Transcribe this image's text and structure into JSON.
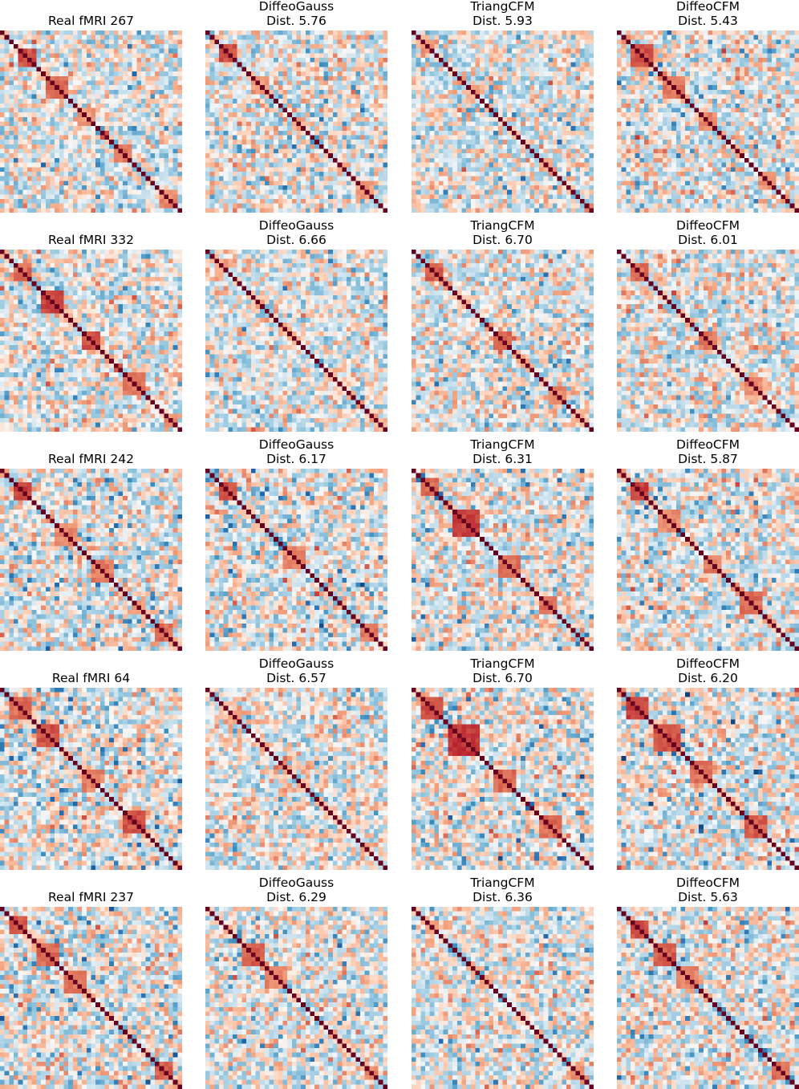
{
  "chart_data": {
    "type": "heatmap",
    "figure_note": "Grid of correlation-matrix heatmaps: 5 rows (subjects) x 4 columns (Real fMRI, DiffeoGauss, TriangCFM, DiffeoCFM). Values estimated from visual colour intensity.",
    "colormap": "diverging red-white-blue (RdBu_r), blue = negative, red = positive",
    "colors": {
      "positive": "#67001f",
      "mid": "#f7f7f7",
      "negative": "#053061"
    },
    "value_range": [
      -1,
      1
    ],
    "matrix_size": 40,
    "grid": false,
    "axes_visible": false,
    "rows": [
      {
        "panels": [
          {
            "title": "Real fMRI 267",
            "subtitle": "",
            "seed": 1,
            "blocks": [
              [
                4,
                7,
                0.55
              ],
              [
                10,
                14,
                0.45
              ],
              [
                17,
                20,
                0.3
              ],
              [
                25,
                28,
                0.4
              ],
              [
                35,
                38,
                0.35
              ]
            ],
            "neg_strength": 0.45
          },
          {
            "title": "DiffeoGauss",
            "subtitle": "Dist. 5.76",
            "seed": 2,
            "blocks": [
              [
                3,
                6,
                0.55
              ],
              [
                10,
                13,
                0.3
              ],
              [
                19,
                21,
                0.25
              ],
              [
                33,
                36,
                0.3
              ]
            ],
            "neg_strength": 0.4
          },
          {
            "title": "TriangCFM",
            "subtitle": "Dist. 5.93",
            "seed": 3,
            "blocks": [
              [
                2,
                4,
                0.35
              ],
              [
                12,
                14,
                0.25
              ],
              [
                28,
                30,
                0.25
              ]
            ],
            "neg_strength": 0.35
          },
          {
            "title": "DiffeoCFM",
            "subtitle": "Dist. 5.43",
            "seed": 4,
            "blocks": [
              [
                3,
                7,
                0.55
              ],
              [
                10,
                14,
                0.4
              ],
              [
                18,
                21,
                0.35
              ],
              [
                31,
                34,
                0.3
              ]
            ],
            "neg_strength": 0.45
          }
        ]
      },
      {
        "panels": [
          {
            "title": "Real fMRI 332",
            "subtitle": "",
            "seed": 5,
            "blocks": [
              [
                3,
                6,
                0.45
              ],
              [
                9,
                13,
                0.6
              ],
              [
                18,
                21,
                0.55
              ],
              [
                27,
                31,
                0.4
              ],
              [
                36,
                38,
                0.35
              ]
            ],
            "neg_strength": 0.35
          },
          {
            "title": "DiffeoGauss",
            "subtitle": "Dist. 6.66",
            "seed": 6,
            "blocks": [
              [
                2,
                4,
                0.25
              ],
              [
                16,
                18,
                0.2
              ],
              [
                26,
                28,
                0.2
              ]
            ],
            "neg_strength": 0.3
          },
          {
            "title": "TriangCFM",
            "subtitle": "Dist. 6.70",
            "seed": 7,
            "blocks": [
              [
                3,
                6,
                0.5
              ],
              [
                18,
                21,
                0.45
              ],
              [
                30,
                33,
                0.35
              ]
            ],
            "neg_strength": 0.35
          },
          {
            "title": "DiffeoCFM",
            "subtitle": "Dist. 6.01",
            "seed": 8,
            "blocks": [
              [
                3,
                6,
                0.45
              ],
              [
                18,
                21,
                0.4
              ],
              [
                28,
                31,
                0.35
              ]
            ],
            "neg_strength": 0.3
          }
        ]
      },
      {
        "panels": [
          {
            "title": "Real fMRI 242",
            "subtitle": "",
            "seed": 9,
            "blocks": [
              [
                3,
                6,
                0.6
              ],
              [
                12,
                16,
                0.35
              ],
              [
                20,
                24,
                0.4
              ],
              [
                34,
                37,
                0.45
              ]
            ],
            "neg_strength": 0.55
          },
          {
            "title": "DiffeoGauss",
            "subtitle": "Dist. 6.17",
            "seed": 10,
            "blocks": [
              [
                3,
                6,
                0.55
              ],
              [
                17,
                21,
                0.35
              ],
              [
                34,
                37,
                0.4
              ]
            ],
            "neg_strength": 0.55
          },
          {
            "title": "TriangCFM",
            "subtitle": "Dist. 6.31",
            "seed": 11,
            "blocks": [
              [
                2,
                5,
                0.45
              ],
              [
                9,
                14,
                0.6
              ],
              [
                19,
                23,
                0.45
              ],
              [
                28,
                31,
                0.45
              ]
            ],
            "neg_strength": 0.5
          },
          {
            "title": "DiffeoCFM",
            "subtitle": "Dist. 5.87",
            "seed": 12,
            "blocks": [
              [
                3,
                6,
                0.6
              ],
              [
                9,
                13,
                0.35
              ],
              [
                19,
                22,
                0.4
              ],
              [
                27,
                31,
                0.45
              ]
            ],
            "neg_strength": 0.45
          }
        ]
      },
      {
        "panels": [
          {
            "title": "Real fMRI 64",
            "subtitle": "",
            "seed": 13,
            "blocks": [
              [
                2,
                6,
                0.45
              ],
              [
                8,
                12,
                0.55
              ],
              [
                18,
                21,
                0.4
              ],
              [
                27,
                31,
                0.55
              ]
            ],
            "neg_strength": 0.55
          },
          {
            "title": "DiffeoGauss",
            "subtitle": "Dist. 6.57",
            "seed": 14,
            "blocks": [
              [
                5,
                7,
                0.2
              ],
              [
                20,
                22,
                0.2
              ]
            ],
            "neg_strength": 0.3
          },
          {
            "title": "TriangCFM",
            "subtitle": "Dist. 6.70",
            "seed": 15,
            "blocks": [
              [
                2,
                6,
                0.55
              ],
              [
                8,
                14,
                0.65
              ],
              [
                18,
                22,
                0.45
              ],
              [
                28,
                32,
                0.45
              ]
            ],
            "neg_strength": 0.6
          },
          {
            "title": "DiffeoCFM",
            "subtitle": "Dist. 6.20",
            "seed": 16,
            "blocks": [
              [
                2,
                6,
                0.6
              ],
              [
                8,
                13,
                0.55
              ],
              [
                16,
                20,
                0.45
              ],
              [
                28,
                32,
                0.5
              ]
            ],
            "neg_strength": 0.55
          }
        ]
      },
      {
        "panels": [
          {
            "title": "Real fMRI 237",
            "subtitle": "",
            "seed": 17,
            "blocks": [
              [
                2,
                5,
                0.55
              ],
              [
                8,
                12,
                0.45
              ],
              [
                14,
                18,
                0.4
              ],
              [
                34,
                37,
                0.5
              ]
            ],
            "neg_strength": 0.5
          },
          {
            "title": "DiffeoGauss",
            "subtitle": "Dist. 6.29",
            "seed": 18,
            "blocks": [
              [
                8,
                12,
                0.5
              ],
              [
                13,
                17,
                0.35
              ],
              [
                35,
                37,
                0.35
              ]
            ],
            "neg_strength": 0.4
          },
          {
            "title": "TriangCFM",
            "subtitle": "Dist. 6.36",
            "seed": 19,
            "blocks": [
              [
                3,
                5,
                0.3
              ],
              [
                15,
                17,
                0.25
              ],
              [
                35,
                37,
                0.3
              ]
            ],
            "neg_strength": 0.4
          },
          {
            "title": "DiffeoCFM",
            "subtitle": "Dist. 5.63",
            "seed": 20,
            "blocks": [
              [
                3,
                6,
                0.55
              ],
              [
                8,
                12,
                0.5
              ],
              [
                13,
                17,
                0.35
              ],
              [
                34,
                37,
                0.45
              ]
            ],
            "neg_strength": 0.5
          }
        ]
      }
    ]
  }
}
